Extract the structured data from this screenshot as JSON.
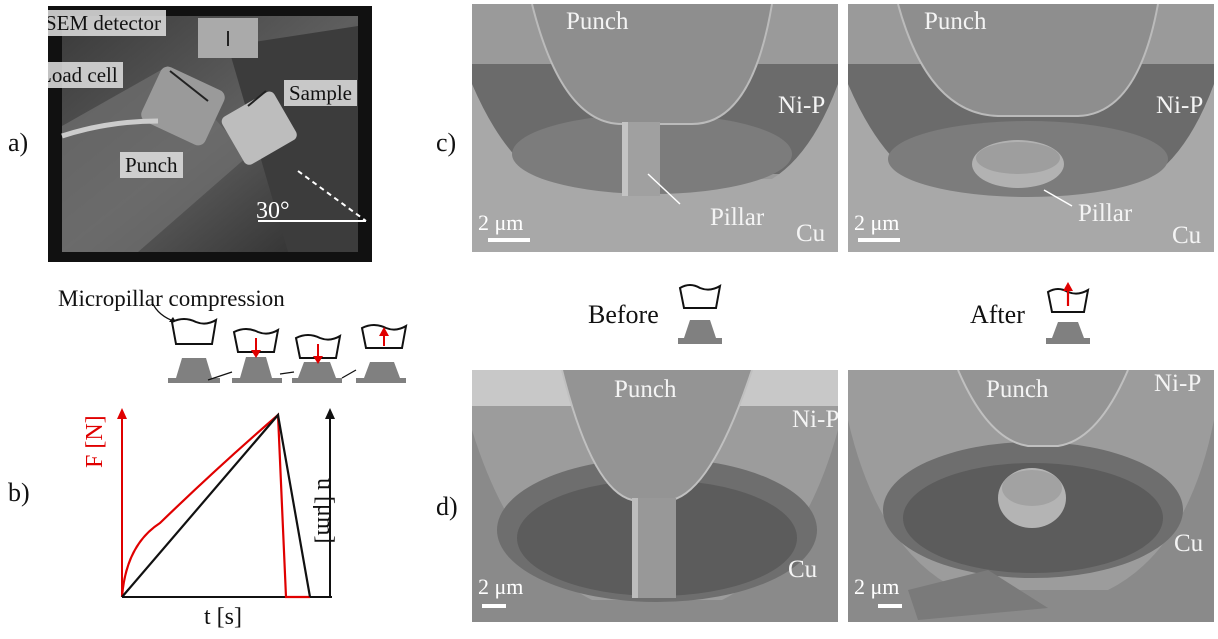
{
  "panel_letters": {
    "a": "a)",
    "b": "b)",
    "c": "c)",
    "d": "d)"
  },
  "photo_a": {
    "sem_detector": "SEM detector",
    "load_cell": "Load cell",
    "sample": "Sample",
    "punch": "Punch",
    "angle": "30°"
  },
  "schematic": {
    "title": "Micropillar compression"
  },
  "plot_b": {
    "xlabel": "t [s]",
    "ylabel_left": "F [N]",
    "ylabel_right": "u [μm]",
    "colors": {
      "force": "#e00000",
      "displacement": "#000000"
    }
  },
  "sem_c_before": {
    "punch": "Punch",
    "coating": "Ni-P",
    "pillar": "Pillar",
    "substrate": "Cu",
    "scale": "2 μm"
  },
  "sem_c_after": {
    "punch": "Punch",
    "coating": "Ni-P",
    "pillar": "Pillar",
    "substrate": "Cu",
    "scale": "2 μm"
  },
  "sem_d_before": {
    "punch": "Punch",
    "coating": "Ni-P",
    "substrate": "Cu",
    "scale": "2 μm"
  },
  "sem_d_after": {
    "punch": "Punch",
    "coating": "Ni-P",
    "substrate": "Cu",
    "scale": "2 μm"
  },
  "captions": {
    "before": "Before",
    "after": "After"
  },
  "arrow_color": "#e00000"
}
